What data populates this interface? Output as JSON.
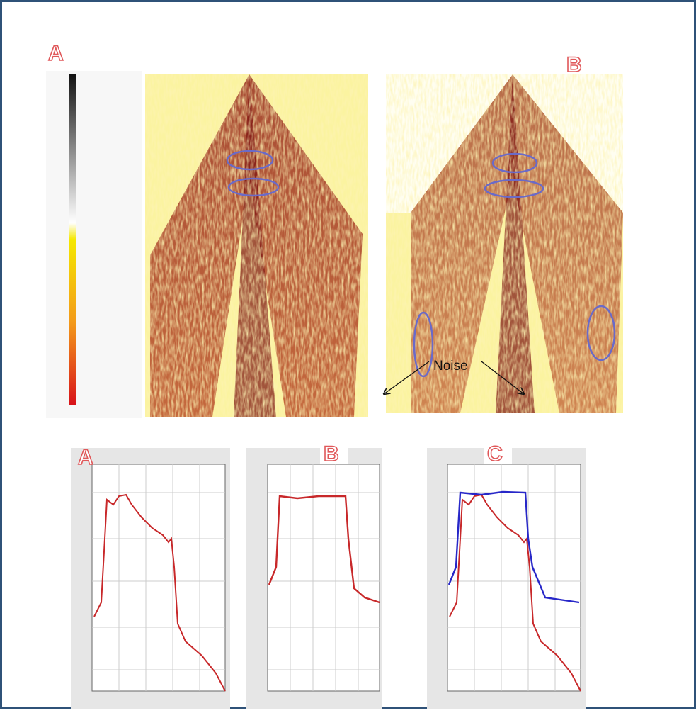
{
  "panels": {
    "top_left_label": "A",
    "top_right_label": "B",
    "noise_label": "Noise"
  },
  "spectra": {
    "labels": [
      "A",
      "B",
      "C"
    ]
  }
}
